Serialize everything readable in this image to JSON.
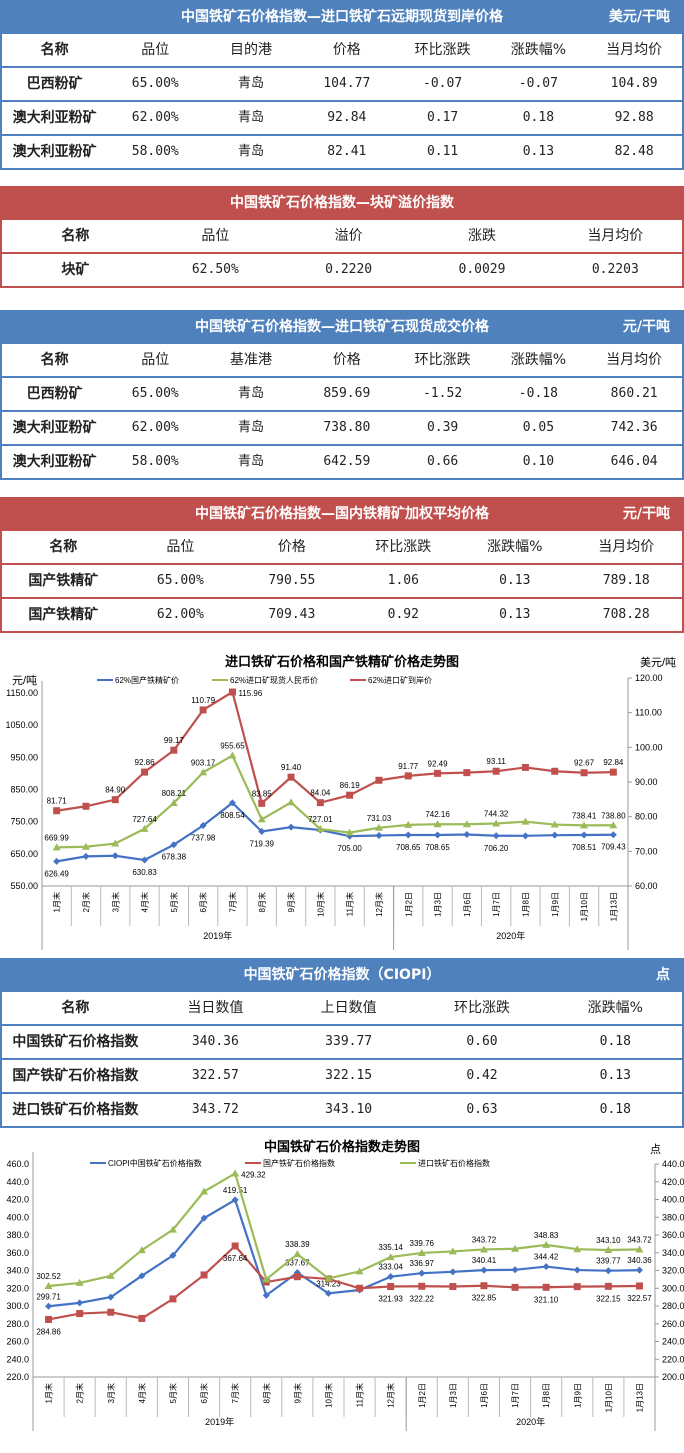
{
  "tables": [
    {
      "id": "forward-arrival",
      "color": "blue",
      "top": 0,
      "title": "中国铁矿石价格指数—进口铁矿石远期现货到岸价格",
      "unit": "美元/干吨",
      "headers": [
        "名称",
        "品位",
        "目的港",
        "价格",
        "环比涨跌",
        "涨跌幅%",
        "当月均价"
      ],
      "rows": [
        [
          "巴西粉矿",
          "65.00%",
          "青岛",
          "104.77",
          "-0.07",
          "-0.07",
          "104.89"
        ],
        [
          "澳大利亚粉矿",
          "62.00%",
          "青岛",
          "92.84",
          "0.17",
          "0.18",
          "92.88"
        ],
        [
          "澳大利亚粉矿",
          "58.00%",
          "青岛",
          "82.41",
          "0.11",
          "0.13",
          "82.48"
        ]
      ]
    },
    {
      "id": "lump-premium",
      "color": "red",
      "top": 186,
      "title": "中国铁矿石价格指数—块矿溢价指数",
      "unit": "",
      "headers": [
        "名称",
        "品位",
        "溢价",
        "涨跌",
        "当月均价"
      ],
      "rows": [
        [
          "块矿",
          "62.50%",
          "0.2220",
          "0.0029",
          "0.2203"
        ]
      ]
    },
    {
      "id": "spot-trade",
      "color": "blue",
      "top": 310,
      "title": "中国铁矿石价格指数—进口铁矿石现货成交价格",
      "unit": "元/干吨",
      "headers": [
        "名称",
        "品位",
        "基准港",
        "价格",
        "环比涨跌",
        "涨跌幅%",
        "当月均价"
      ],
      "rows": [
        [
          "巴西粉矿",
          "65.00%",
          "青岛",
          "859.69",
          "-1.52",
          "-0.18",
          "860.21"
        ],
        [
          "澳大利亚粉矿",
          "62.00%",
          "青岛",
          "738.80",
          "0.39",
          "0.05",
          "742.36"
        ],
        [
          "澳大利亚粉矿",
          "58.00%",
          "青岛",
          "642.59",
          "0.66",
          "0.10",
          "646.04"
        ]
      ]
    },
    {
      "id": "domestic-concentrate",
      "color": "red",
      "top": 497,
      "title": "中国铁矿石价格指数—国内铁精矿加权平均价格",
      "unit": "元/干吨",
      "headers": [
        "名称",
        "品位",
        "价格",
        "环比涨跌",
        "涨跌幅%",
        "当月均价"
      ],
      "rows": [
        [
          "国产铁精矿",
          "65.00%",
          "790.55",
          "1.06",
          "0.13",
          "789.18"
        ],
        [
          "国产铁精矿",
          "62.00%",
          "709.43",
          "0.92",
          "0.13",
          "708.28"
        ]
      ]
    },
    {
      "id": "ciopi",
      "color": "blue",
      "top": 958,
      "title": "中国铁矿石价格指数（CIOPI）",
      "unit": "点",
      "headers": [
        "名称",
        "当日数值",
        "上日数值",
        "环比涨跌",
        "涨跌幅%"
      ],
      "rows": [
        [
          "中国铁矿石价格指数",
          "340.36",
          "339.77",
          "0.60",
          "0.18"
        ],
        [
          "国产铁矿石价格指数",
          "322.57",
          "322.15",
          "0.42",
          "0.13"
        ],
        [
          "进口铁矿石价格指数",
          "343.72",
          "343.10",
          "0.63",
          "0.18"
        ]
      ]
    }
  ],
  "chart_data": [
    {
      "type": "line",
      "title": "进口铁矿石价格和国产铁精矿价格走势图",
      "ylabel": "元/吨",
      "y2label": "美元/吨",
      "ylim": [
        550,
        1150
      ],
      "yticks": [
        "550.00",
        "650.00",
        "750.00",
        "850.00",
        "950.00",
        "1050.00",
        "1150.00"
      ],
      "y2lim": [
        60,
        120
      ],
      "y2ticks": [
        "60.00",
        "70.00",
        "80.00",
        "90.00",
        "100.00",
        "110.00",
        "120.00"
      ],
      "categories": [
        "1月末",
        "2月末",
        "3月末",
        "4月末",
        "5月末",
        "6月末",
        "7月末",
        "8月末",
        "9月末",
        "10月末",
        "11月末",
        "12月末",
        "1月2日",
        "1月3日",
        "1月6日",
        "1月7日",
        "1月8日",
        "1月9日",
        "1月10日",
        "1月13日"
      ],
      "groups": [
        {
          "label": "2019年",
          "count": 12
        },
        {
          "label": "2020年",
          "count": 8
        }
      ],
      "legend": "top",
      "series": [
        {
          "name": "62%国产铁精矿价",
          "color": "#4472c4",
          "marker": "diamond",
          "axis": "left",
          "values": [
            626.49,
            642,
            644,
            630.83,
            678.38,
            737.98,
            808.54,
            719.39,
            733,
            724,
            705.0,
            707,
            708.65,
            708.65,
            710,
            706.2,
            706,
            708,
            708.51,
            709.43
          ],
          "labels": [
            "626.49",
            null,
            null,
            "630.83",
            "678.38",
            "737.98",
            "808.54",
            "719.39",
            null,
            null,
            "705.00",
            null,
            "708.65",
            "708.65",
            null,
            "706.20",
            null,
            null,
            "708.51",
            "709.43"
          ],
          "labelPos": "below"
        },
        {
          "name": "62%进口矿现货人民币价",
          "color": "#9bbb59",
          "marker": "triangle",
          "axis": "left",
          "values": [
            669.99,
            672,
            682,
            727.64,
            808.21,
            903.17,
            955.65,
            757,
            810,
            727.01,
            716,
            731.03,
            740,
            742.16,
            742,
            744.32,
            750,
            741,
            738.41,
            738.8
          ],
          "labels": [
            "669.99",
            null,
            null,
            "727.64",
            "808.21",
            "903.17",
            "955.65",
            null,
            null,
            "727.01",
            null,
            "731.03",
            null,
            "742.16",
            null,
            "744.32",
            null,
            null,
            "738.41",
            "738.80"
          ],
          "labelPos": "above"
        },
        {
          "name": "62%进口矿到岸价",
          "color": "#c0504d",
          "marker": "square",
          "axis": "right",
          "values": [
            81.71,
            83,
            84.9,
            92.86,
            99.17,
            110.79,
            115.96,
            83.85,
            91.4,
            84.04,
            86.19,
            90.5,
            91.77,
            92.49,
            92.7,
            93.11,
            94.2,
            93.1,
            92.67,
            92.84
          ],
          "labels": [
            "81.71",
            null,
            "84.90",
            "92.86",
            "99.17",
            "110.79",
            "115.96",
            "83.85",
            "91.40",
            "84.04",
            "86.19",
            null,
            "91.77",
            "92.49",
            null,
            "93.11",
            null,
            null,
            "92.67",
            "92.84"
          ],
          "labelPos": "above"
        }
      ]
    },
    {
      "type": "line",
      "title": "中国铁矿石价格指数走势图",
      "ylabel": "",
      "y2label": "点",
      "ylim": [
        220,
        460
      ],
      "yticks": [
        "220.0",
        "240.0",
        "260.0",
        "280.0",
        "300.0",
        "320.0",
        "340.0",
        "360.0",
        "380.0",
        "400.0",
        "420.0",
        "440.0",
        "460.0"
      ],
      "y2lim": [
        200,
        440
      ],
      "y2ticks": [
        "200.0",
        "220.0",
        "240.0",
        "260.0",
        "280.0",
        "300.0",
        "320.0",
        "340.0",
        "360.0",
        "380.0",
        "400.0",
        "420.0",
        "440.0"
      ],
      "categories": [
        "1月末",
        "2月末",
        "3月末",
        "4月末",
        "5月末",
        "6月末",
        "7月末",
        "8月末",
        "9月末",
        "10月末",
        "11月末",
        "12月末",
        "1月2日",
        "1月3日",
        "1月6日",
        "1月7日",
        "1月8日",
        "1月9日",
        "1月10日",
        "1月13日"
      ],
      "groups": [
        {
          "label": "2019年",
          "count": 12
        },
        {
          "label": "2020年",
          "count": 8
        }
      ],
      "legend": "top",
      "series": [
        {
          "name": "CIOPI中国铁矿石价格指数",
          "color": "#4472c4",
          "marker": "diamond",
          "axis": "left",
          "values": [
            299.71,
            303.5,
            310,
            334,
            357,
            399,
            419.51,
            312,
            337.67,
            314.23,
            318,
            333.04,
            336.97,
            338.5,
            340.41,
            340.8,
            344.42,
            340.5,
            339.77,
            340.36
          ],
          "labels": [
            "299.71",
            null,
            null,
            null,
            null,
            null,
            "419.51",
            null,
            "337.67",
            "314.23",
            null,
            "333.04",
            "336.97",
            null,
            "340.41",
            null,
            "344.42",
            null,
            "339.77",
            "340.36"
          ],
          "labelPos": "above"
        },
        {
          "name": "国产铁矿石价格指数",
          "color": "#c0504d",
          "marker": "square",
          "axis": "left",
          "values": [
            284.86,
            291.5,
            293,
            286,
            308,
            335,
            367.64,
            327,
            333,
            330.5,
            320,
            321.93,
            322.22,
            322,
            322.85,
            321,
            321.1,
            321.8,
            322.15,
            322.57
          ],
          "labels": [
            "284.86",
            null,
            null,
            null,
            null,
            null,
            "367.64",
            null,
            null,
            null,
            null,
            "321.93",
            "322.22",
            null,
            "322.85",
            null,
            "321.10",
            null,
            "322.15",
            "322.57"
          ],
          "labelPos": "below"
        },
        {
          "name": "进口铁矿石价格指数",
          "color": "#9bbb59",
          "marker": "triangle",
          "axis": "right",
          "values": [
            302.52,
            306,
            314,
            343,
            366,
            409,
            429.32,
            310,
            338.39,
            311,
            319,
            335.14,
            339.76,
            341.5,
            343.72,
            344.5,
            348.83,
            344,
            343.1,
            343.72
          ],
          "labels": [
            "302.52",
            null,
            null,
            null,
            null,
            null,
            "429.32",
            null,
            "338.39",
            null,
            null,
            "335.14",
            "339.76",
            null,
            "343.72",
            null,
            "348.83",
            null,
            "343.10",
            "343.72"
          ],
          "labelPos": "above"
        }
      ]
    }
  ]
}
